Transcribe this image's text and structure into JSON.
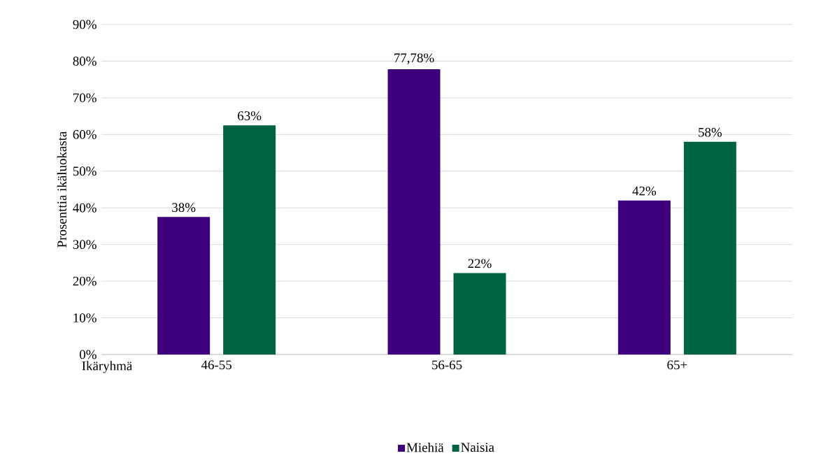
{
  "chart_data": {
    "type": "bar",
    "ylabel": "Prosenttia ikäluokasta",
    "xlabel": "Ikäryhmä",
    "categories": [
      "46-55",
      "56-65",
      "65+"
    ],
    "series": [
      {
        "name": "Miehiä",
        "color": "#3f007d",
        "values": [
          37.5,
          77.78,
          42
        ],
        "value_labels": [
          "38%",
          "77,78%",
          "42%"
        ]
      },
      {
        "name": "Naisia",
        "color": "#006442",
        "values": [
          62.5,
          22.22,
          58
        ],
        "value_labels": [
          "63%",
          "22%",
          "58%"
        ]
      }
    ],
    "ylim": [
      0,
      90
    ],
    "yticks": [
      {
        "value": 0,
        "label": "0%"
      },
      {
        "value": 10,
        "label": "10%"
      },
      {
        "value": 20,
        "label": "20%"
      },
      {
        "value": 30,
        "label": "30%"
      },
      {
        "value": 40,
        "label": "40%"
      },
      {
        "value": 50,
        "label": "50%"
      },
      {
        "value": 60,
        "label": "60%"
      },
      {
        "value": 70,
        "label": "70%"
      },
      {
        "value": 80,
        "label": "80%"
      },
      {
        "value": 90,
        "label": "90%"
      }
    ],
    "grid": "y",
    "legend": "bottom"
  }
}
